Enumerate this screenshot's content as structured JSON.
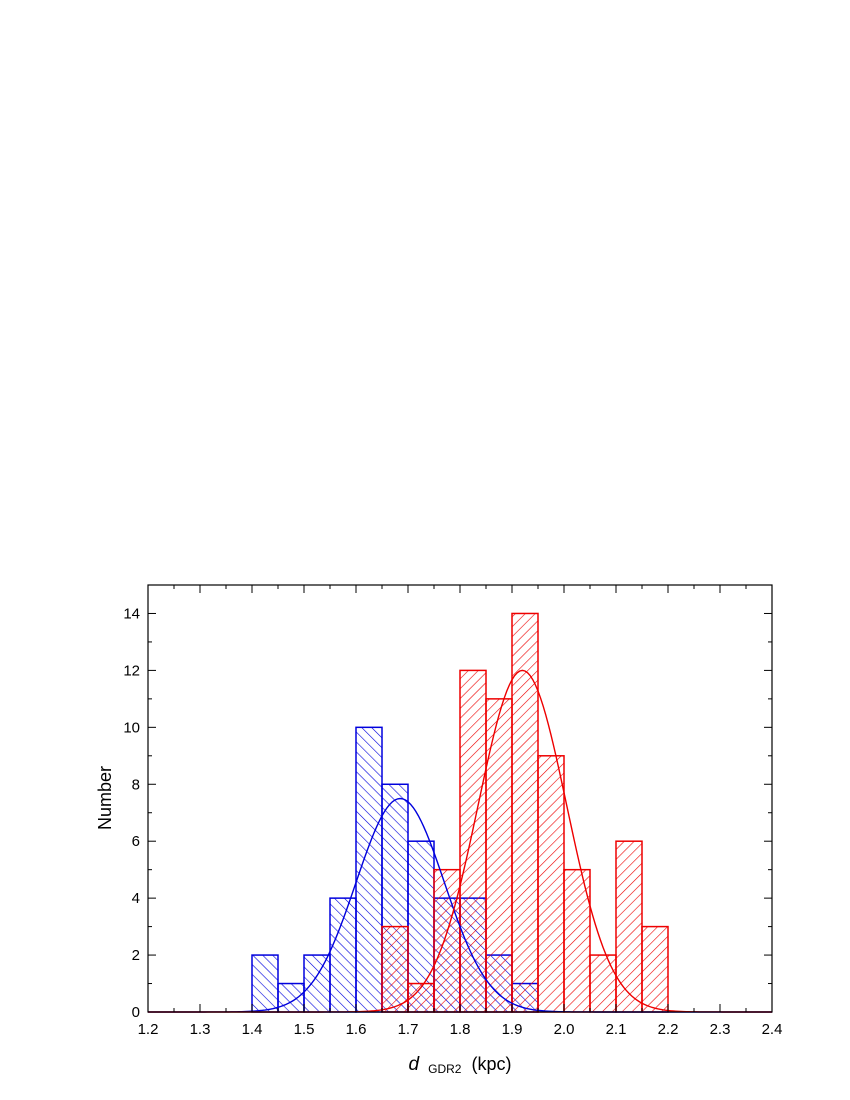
{
  "chart_data": {
    "type": "bar",
    "xlabel_main": "d",
    "xlabel_sub": "GDR2",
    "xlabel_unit": "(kpc)",
    "ylabel": "Number",
    "xlim": [
      1.2,
      2.4
    ],
    "ylim": [
      0,
      15
    ],
    "xticks": [
      "1.2",
      "1.3",
      "1.4",
      "1.5",
      "1.6",
      "1.7",
      "1.8",
      "1.9",
      "2.0",
      "2.1",
      "2.2",
      "2.3",
      "2.4"
    ],
    "yticks": [
      "0",
      "2",
      "4",
      "6",
      "8",
      "10",
      "12",
      "14"
    ],
    "bin_width": 0.05,
    "series": [
      {
        "color": "#0000dd",
        "hatch": "backslash",
        "bins": [
          {
            "x0": 1.4,
            "count": 2
          },
          {
            "x0": 1.45,
            "count": 1
          },
          {
            "x0": 1.5,
            "count": 2
          },
          {
            "x0": 1.55,
            "count": 4
          },
          {
            "x0": 1.6,
            "count": 10
          },
          {
            "x0": 1.65,
            "count": 8
          },
          {
            "x0": 1.7,
            "count": 6
          },
          {
            "x0": 1.75,
            "count": 4
          },
          {
            "x0": 1.8,
            "count": 4
          },
          {
            "x0": 1.85,
            "count": 2
          },
          {
            "x0": 1.9,
            "count": 1
          }
        ],
        "fit": {
          "mean": 1.685,
          "sigma": 0.085,
          "amplitude": 7.5
        }
      },
      {
        "color": "#ee0000",
        "hatch": "slash",
        "bins": [
          {
            "x0": 1.65,
            "count": 3
          },
          {
            "x0": 1.7,
            "count": 1
          },
          {
            "x0": 1.75,
            "count": 5
          },
          {
            "x0": 1.8,
            "count": 12
          },
          {
            "x0": 1.85,
            "count": 11
          },
          {
            "x0": 1.9,
            "count": 14
          },
          {
            "x0": 1.95,
            "count": 9
          },
          {
            "x0": 2.0,
            "count": 5
          },
          {
            "x0": 2.05,
            "count": 2
          },
          {
            "x0": 2.1,
            "count": 6
          },
          {
            "x0": 2.15,
            "count": 3
          }
        ],
        "fit": {
          "mean": 1.92,
          "sigma": 0.085,
          "amplitude": 12.0
        }
      }
    ]
  }
}
